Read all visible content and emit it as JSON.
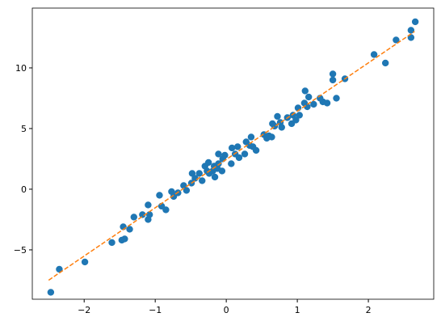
{
  "chart_data": {
    "type": "scatter",
    "xlim": [
      -2.73,
      2.92
    ],
    "ylim": [
      -9.07,
      14.93
    ],
    "xticks": [
      {
        "value": -2,
        "label": "−2"
      },
      {
        "value": -1,
        "label": "−1"
      },
      0,
      1,
      2
    ],
    "yticks": [
      {
        "value": -5,
        "label": "−5"
      },
      0,
      5,
      10
    ],
    "series": [
      {
        "type": "scatter",
        "color": "#1f77b4",
        "x": [
          -2.47,
          -2.35,
          -1.99,
          -1.61,
          -1.45,
          -1.47,
          -1.43,
          -1.36,
          -1.3,
          -1.18,
          -1.1,
          -1.1,
          -1.08,
          -0.94,
          -0.91,
          -0.85,
          -0.77,
          -0.74,
          -0.68,
          -0.6,
          -0.56,
          -0.49,
          -0.48,
          -0.44,
          -0.38,
          -0.34,
          -0.3,
          -0.27,
          -0.25,
          -0.24,
          -0.19,
          -0.17,
          -0.16,
          -0.125,
          -0.11,
          -0.11,
          -0.06,
          -0.05,
          -0.02,
          0.07,
          0.08,
          0.125,
          0.16,
          0.18,
          0.26,
          0.28,
          0.33,
          0.35,
          0.375,
          0.42,
          0.53,
          0.57,
          0.6,
          0.64,
          0.65,
          0.68,
          0.72,
          0.76,
          0.78,
          0.86,
          0.92,
          0.94,
          0.98,
          1.01,
          1.03,
          1.1,
          1.11,
          1.14,
          1.16,
          1.23,
          1.32,
          1.36,
          1.42,
          1.5,
          1.5,
          1.55,
          1.67,
          2.08,
          2.24,
          2.39,
          2.6,
          2.6,
          2.66
        ],
        "values": [
          -8.5,
          -6.6,
          -6.0,
          -4.4,
          -3.1,
          -4.2,
          -4.1,
          -3.3,
          -2.3,
          -2.1,
          -2.5,
          -1.3,
          -2.1,
          -0.5,
          -1.4,
          -1.7,
          -0.2,
          -0.6,
          -0.3,
          0.3,
          -0.1,
          0.5,
          1.3,
          0.9,
          1.3,
          0.7,
          1.9,
          1.5,
          2.2,
          1.3,
          1.5,
          1.9,
          1.0,
          1.7,
          2.1,
          2.9,
          1.5,
          2.5,
          2.8,
          2.1,
          3.4,
          2.9,
          3.5,
          2.6,
          2.9,
          3.9,
          3.6,
          4.3,
          3.5,
          3.2,
          4.5,
          4.2,
          4.4,
          4.3,
          5.4,
          5.2,
          6.0,
          5.5,
          5.1,
          5.9,
          5.4,
          6.1,
          5.7,
          6.7,
          6.1,
          7.1,
          8.1,
          6.8,
          7.6,
          7.0,
          7.5,
          7.2,
          7.1,
          9.0,
          9.5,
          7.5,
          9.1,
          11.1,
          10.4,
          12.3,
          13.1,
          12.5,
          13.8
        ]
      },
      {
        "type": "line",
        "color": "#ff7f0e",
        "linestyle": "dashed",
        "x": [
          -2.5,
          2.65
        ],
        "values": [
          -7.5,
          13.0
        ]
      }
    ]
  }
}
